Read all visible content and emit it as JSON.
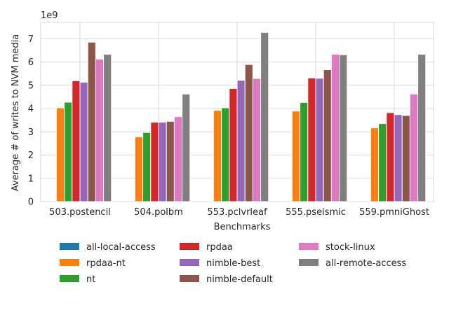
{
  "chart_data": {
    "type": "bar",
    "xlabel": "Benchmarks",
    "ylabel": "Average # of writes to NVM media",
    "offset_label": "1e9",
    "ylim": [
      0,
      7.7
    ],
    "yticks": [
      "0",
      "1",
      "2",
      "3",
      "4",
      "5",
      "6",
      "7"
    ],
    "grid": true,
    "legend_position": "bottom-center",
    "categories": [
      "503.postencil",
      "504.polbm",
      "553.pclvrleaf",
      "555.pseismic",
      "559.pmniGhost"
    ],
    "series": [
      {
        "name": "all-local-access",
        "color": "#1f77b4",
        "values": [
          0,
          0,
          0,
          0,
          0
        ]
      },
      {
        "name": "rpdaa-nt",
        "color": "#ff7f0e",
        "values": [
          4.03,
          2.78,
          3.92,
          3.89,
          3.17
        ]
      },
      {
        "name": "nt",
        "color": "#2ca02c",
        "values": [
          4.27,
          2.97,
          4.03,
          4.26,
          3.35
        ]
      },
      {
        "name": "rpdaa",
        "color": "#d62728",
        "values": [
          5.19,
          3.41,
          4.86,
          5.31,
          3.82
        ]
      },
      {
        "name": "nimble-best",
        "color": "#9467bd",
        "values": [
          5.13,
          3.41,
          5.21,
          5.3,
          3.74
        ]
      },
      {
        "name": "nimble-default",
        "color": "#8c564b",
        "values": [
          6.85,
          3.45,
          5.89,
          5.67,
          3.7
        ]
      },
      {
        "name": "stock-linux",
        "color": "#e377c2",
        "values": [
          6.12,
          3.65,
          5.29,
          6.33,
          4.62
        ]
      },
      {
        "name": "all-remote-access",
        "color": "#7f7f7f",
        "values": [
          6.33,
          4.62,
          7.27,
          6.31,
          6.33
        ]
      }
    ]
  }
}
